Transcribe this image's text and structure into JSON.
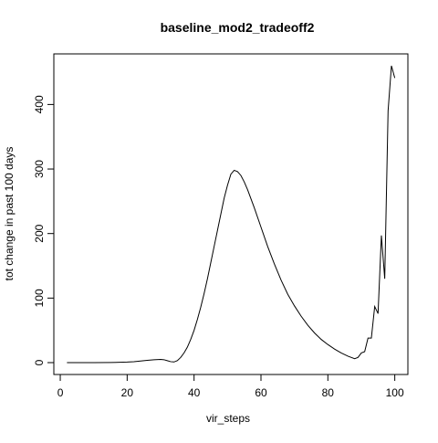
{
  "chart_data": {
    "type": "line",
    "title": "baseline_mod2_tradeoff2",
    "x_label": "vir_steps",
    "y_label": "tot change in past 100 days",
    "x": [
      2,
      5,
      10,
      15,
      20,
      22,
      24,
      26,
      28,
      30,
      31,
      32,
      33,
      34,
      35,
      36,
      37,
      38,
      39,
      40,
      41,
      42,
      43,
      44,
      45,
      46,
      47,
      48,
      49,
      50,
      51,
      52,
      53,
      54,
      55,
      56,
      58,
      60,
      62,
      64,
      66,
      68,
      70,
      72,
      74,
      76,
      78,
      80,
      82,
      84,
      86,
      88,
      89,
      90,
      91,
      92,
      93,
      94,
      95,
      96,
      97,
      98,
      99,
      100
    ],
    "series": [
      {
        "name": "tot change",
        "color": "#000000",
        "values": [
          0,
          0,
          0,
          0.2,
          0.8,
          1.5,
          2.5,
          3.5,
          4.5,
          5,
          4.5,
          3,
          1.5,
          1,
          3,
          8,
          15,
          24,
          36,
          50,
          67,
          86,
          107,
          130,
          155,
          180,
          205,
          230,
          255,
          275,
          292,
          298,
          296,
          290,
          280,
          268,
          240,
          210,
          180,
          153,
          128,
          106,
          88,
          72,
          58,
          46,
          36,
          28,
          21,
          15,
          10,
          6,
          8,
          15,
          17,
          38,
          38,
          87,
          76,
          197,
          130,
          390,
          460,
          441
        ]
      }
    ],
    "xlim": [
      -1.92,
      103.92
    ],
    "ylim": [
      -18.4,
      478.4
    ],
    "xticks": [
      0,
      20,
      40,
      60,
      80,
      100
    ],
    "yticks": [
      0,
      100,
      200,
      300,
      400
    ]
  }
}
